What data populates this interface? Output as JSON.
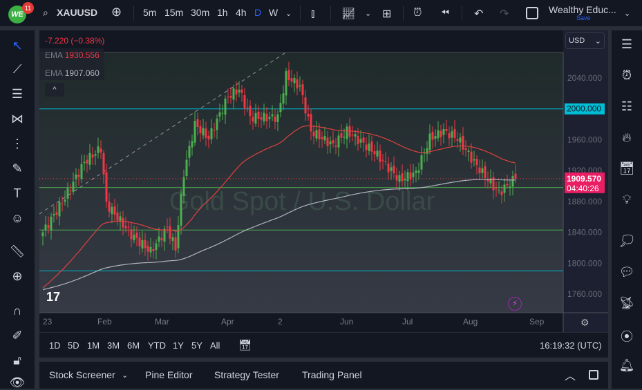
{
  "header": {
    "badge_count": "11",
    "logo": "WE",
    "symbol": "XAUUSD",
    "timeframes": [
      "5m",
      "15m",
      "30m",
      "1h",
      "4h",
      "D",
      "W"
    ],
    "active_timeframe": "D",
    "layout_name": "Wealthy Educ...",
    "save_label": "Save"
  },
  "legend": {
    "change": "-7.220 (−0.38%)",
    "ema1_label": "EMA",
    "ema1_value": "1930.556",
    "ema2_label": "EMA",
    "ema2_value": "1907.060",
    "collapse": "^"
  },
  "currency": "USD",
  "watermark": "Gold Spot / U.S. Dollar",
  "price_axis": {
    "labels": [
      "2040.000",
      "1960.000",
      "1920.000",
      "1880.000",
      "1840.000",
      "1800.000",
      "1760.000"
    ],
    "level_tag": "2000.000",
    "current_price": "1909.570",
    "countdown": "04:40:26"
  },
  "time_axis": [
    "23",
    "Feb",
    "Mar",
    "Apr",
    "2",
    "Jun",
    "Jul",
    "Aug",
    "Sep"
  ],
  "ranges": [
    "1D",
    "5D",
    "1M",
    "3M",
    "6M",
    "YTD",
    "1Y",
    "5Y",
    "All"
  ],
  "clock": "16:19:32 (UTC)",
  "panel_tabs": [
    "Stock Screener",
    "Pine Editor",
    "Strategy Tester",
    "Trading Panel"
  ],
  "colors": {
    "up": "#26a69a",
    "up_candle": "#4caf50",
    "down": "#f23645",
    "ema_fast": "#e0413f",
    "ema_slow": "#b2b5be",
    "cyan": "#00bcd4",
    "green": "#4caf50"
  },
  "chart_data": {
    "type": "candlestick",
    "symbol": "XAUUSD",
    "ylim": [
      1745,
      2075
    ],
    "close_waypoints": [
      [
        0,
        1840
      ],
      [
        8,
        1885
      ],
      [
        15,
        1931
      ],
      [
        21,
        1949
      ],
      [
        23,
        1877
      ],
      [
        32,
        1837
      ],
      [
        39,
        1815
      ],
      [
        45,
        1846
      ],
      [
        48,
        1819
      ],
      [
        51,
        1917
      ],
      [
        55,
        1980
      ],
      [
        60,
        1962
      ],
      [
        67,
        2016
      ],
      [
        71,
        2025
      ],
      [
        75,
        1989
      ],
      [
        85,
        1989
      ],
      [
        88,
        2043
      ],
      [
        93,
        2029
      ],
      [
        97,
        1971
      ],
      [
        105,
        1953
      ],
      [
        110,
        1971
      ],
      [
        120,
        1944
      ],
      [
        129,
        1908
      ],
      [
        135,
        1917
      ],
      [
        140,
        1962
      ],
      [
        145,
        1971
      ],
      [
        150,
        1962
      ],
      [
        157,
        1926
      ],
      [
        165,
        1891
      ],
      [
        169,
        1904
      ],
      [
        171,
        1910
      ]
    ],
    "horizontal_levels": [
      2000,
      1898,
      1843,
      1790
    ],
    "ema_fast_last": 1930.556,
    "ema_slow_last": 1907.06,
    "last": 1909.57
  }
}
